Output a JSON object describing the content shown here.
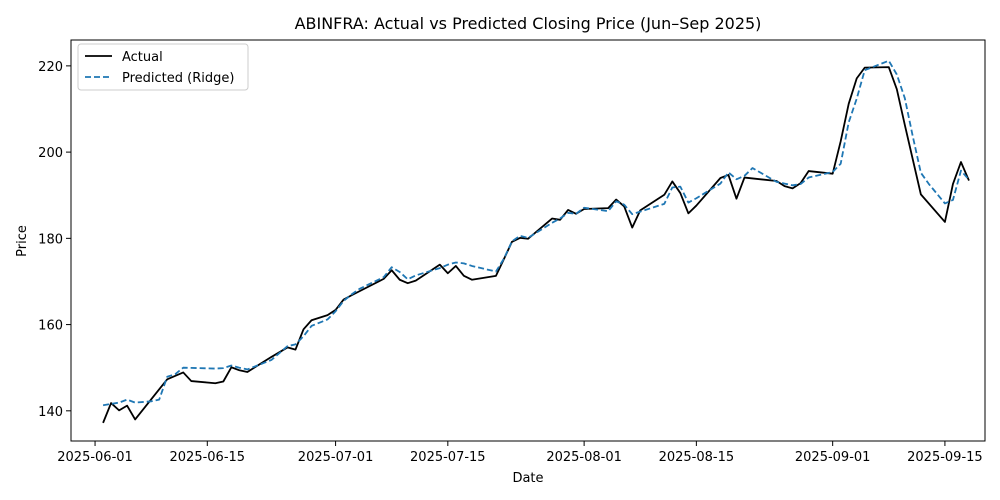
{
  "chart_data": {
    "type": "line",
    "title": "ABINFRA: Actual vs Predicted Closing Price (Jun–Sep 2025)",
    "xlabel": "Date",
    "ylabel": "Price",
    "x_tick_labels": [
      {
        "date": "2025-06-01",
        "label": "2025-06-01"
      },
      {
        "date": "2025-06-15",
        "label": "2025-06-15"
      },
      {
        "date": "2025-07-01",
        "label": "2025-07-01"
      },
      {
        "date": "2025-07-15",
        "label": "2025-07-15"
      },
      {
        "date": "2025-08-01",
        "label": "2025-08-01"
      },
      {
        "date": "2025-08-15",
        "label": "2025-08-15"
      },
      {
        "date": "2025-09-01",
        "label": "2025-09-01"
      },
      {
        "date": "2025-09-15",
        "label": "2025-09-15"
      }
    ],
    "y_ticks": [
      140,
      160,
      180,
      200,
      220
    ],
    "xlim": [
      "2025-05-29",
      "2025-09-20"
    ],
    "ylim": [
      133,
      226
    ],
    "grid": false,
    "legend_position": "upper-left",
    "series": [
      {
        "name": "Actual",
        "color": "#000000",
        "style": "solid",
        "points": [
          [
            "2025-06-02",
            137.2
          ],
          [
            "2025-06-03",
            141.8
          ],
          [
            "2025-06-04",
            140.1
          ],
          [
            "2025-06-05",
            141.2
          ],
          [
            "2025-06-06",
            138.0
          ],
          [
            "2025-06-09",
            145.0
          ],
          [
            "2025-06-10",
            147.3
          ],
          [
            "2025-06-12",
            148.9
          ],
          [
            "2025-06-13",
            146.9
          ],
          [
            "2025-06-16",
            146.4
          ],
          [
            "2025-06-17",
            146.8
          ],
          [
            "2025-06-18",
            150.1
          ],
          [
            "2025-06-19",
            149.4
          ],
          [
            "2025-06-20",
            149.0
          ],
          [
            "2025-06-23",
            152.5
          ],
          [
            "2025-06-24",
            153.6
          ],
          [
            "2025-06-25",
            154.7
          ],
          [
            "2025-06-26",
            154.2
          ],
          [
            "2025-06-27",
            158.9
          ],
          [
            "2025-06-28",
            161.0
          ],
          [
            "2025-06-30",
            162.2
          ],
          [
            "2025-07-01",
            163.4
          ],
          [
            "2025-07-02",
            165.8
          ],
          [
            "2025-07-03",
            166.8
          ],
          [
            "2025-07-07",
            170.6
          ],
          [
            "2025-07-08",
            172.6
          ],
          [
            "2025-07-09",
            170.4
          ],
          [
            "2025-07-10",
            169.6
          ],
          [
            "2025-07-11",
            170.2
          ],
          [
            "2025-07-14",
            173.9
          ],
          [
            "2025-07-15",
            171.9
          ],
          [
            "2025-07-16",
            173.6
          ],
          [
            "2025-07-17",
            171.3
          ],
          [
            "2025-07-18",
            170.4
          ],
          [
            "2025-07-21",
            171.3
          ],
          [
            "2025-07-22",
            175.2
          ],
          [
            "2025-07-23",
            179.2
          ],
          [
            "2025-07-24",
            180.1
          ],
          [
            "2025-07-25",
            179.9
          ],
          [
            "2025-07-28",
            184.6
          ],
          [
            "2025-07-29",
            184.3
          ],
          [
            "2025-07-30",
            186.6
          ],
          [
            "2025-07-31",
            185.7
          ],
          [
            "2025-08-01",
            186.8
          ],
          [
            "2025-08-04",
            187.0
          ],
          [
            "2025-08-05",
            189.0
          ],
          [
            "2025-08-06",
            187.4
          ],
          [
            "2025-08-07",
            182.5
          ],
          [
            "2025-08-08",
            186.5
          ],
          [
            "2025-08-11",
            190.1
          ],
          [
            "2025-08-12",
            193.2
          ],
          [
            "2025-08-13",
            190.5
          ],
          [
            "2025-08-14",
            185.8
          ],
          [
            "2025-08-15",
            187.6
          ],
          [
            "2025-08-18",
            194.0
          ],
          [
            "2025-08-19",
            194.7
          ],
          [
            "2025-08-20",
            189.2
          ],
          [
            "2025-08-21",
            194.1
          ],
          [
            "2025-08-25",
            193.3
          ],
          [
            "2025-08-26",
            192.1
          ],
          [
            "2025-08-27",
            191.6
          ],
          [
            "2025-08-28",
            192.8
          ],
          [
            "2025-08-29",
            195.6
          ],
          [
            "2025-09-01",
            195.0
          ],
          [
            "2025-09-02",
            202.5
          ],
          [
            "2025-09-03",
            211.2
          ],
          [
            "2025-09-04",
            217.1
          ],
          [
            "2025-09-05",
            219.6
          ],
          [
            "2025-09-08",
            219.7
          ],
          [
            "2025-09-09",
            214.6
          ],
          [
            "2025-09-10",
            206.3
          ],
          [
            "2025-09-12",
            190.2
          ],
          [
            "2025-09-15",
            183.8
          ],
          [
            "2025-09-16",
            192.6
          ],
          [
            "2025-09-17",
            197.7
          ],
          [
            "2025-09-18",
            193.4
          ]
        ]
      },
      {
        "name": "Predicted (Ridge)",
        "color": "#1f77b4",
        "style": "dashed",
        "points": [
          [
            "2025-06-02",
            141.3
          ],
          [
            "2025-06-03",
            141.6
          ],
          [
            "2025-06-04",
            141.9
          ],
          [
            "2025-06-05",
            142.6
          ],
          [
            "2025-06-06",
            141.9
          ],
          [
            "2025-06-08",
            142.2
          ],
          [
            "2025-06-09",
            142.6
          ],
          [
            "2025-06-10",
            147.9
          ],
          [
            "2025-06-11",
            148.5
          ],
          [
            "2025-06-12",
            150.0
          ],
          [
            "2025-06-16",
            149.8
          ],
          [
            "2025-06-17",
            149.9
          ],
          [
            "2025-06-18",
            150.5
          ],
          [
            "2025-06-19",
            150.0
          ],
          [
            "2025-06-20",
            149.6
          ],
          [
            "2025-06-23",
            151.8
          ],
          [
            "2025-06-25",
            155.0
          ],
          [
            "2025-06-26",
            155.4
          ],
          [
            "2025-06-27",
            157.3
          ],
          [
            "2025-06-28",
            159.7
          ],
          [
            "2025-06-30",
            161.2
          ],
          [
            "2025-07-01",
            163.1
          ],
          [
            "2025-07-02",
            165.5
          ],
          [
            "2025-07-03",
            167.0
          ],
          [
            "2025-07-04",
            168.3
          ],
          [
            "2025-07-07",
            171.0
          ],
          [
            "2025-07-08",
            173.3
          ],
          [
            "2025-07-09",
            172.2
          ],
          [
            "2025-07-10",
            170.5
          ],
          [
            "2025-07-11",
            171.4
          ],
          [
            "2025-07-14",
            173.1
          ],
          [
            "2025-07-15",
            173.9
          ],
          [
            "2025-07-16",
            174.4
          ],
          [
            "2025-07-17",
            174.2
          ],
          [
            "2025-07-18",
            173.6
          ],
          [
            "2025-07-21",
            172.3
          ],
          [
            "2025-07-22",
            175.3
          ],
          [
            "2025-07-23",
            179.3
          ],
          [
            "2025-07-24",
            180.6
          ],
          [
            "2025-07-25",
            180.1
          ],
          [
            "2025-07-28",
            183.6
          ],
          [
            "2025-07-29",
            184.6
          ],
          [
            "2025-07-30",
            185.9
          ],
          [
            "2025-07-31",
            185.7
          ],
          [
            "2025-08-01",
            187.1
          ],
          [
            "2025-08-04",
            186.3
          ],
          [
            "2025-08-05",
            188.6
          ],
          [
            "2025-08-06",
            187.8
          ],
          [
            "2025-08-07",
            185.6
          ],
          [
            "2025-08-08",
            186.2
          ],
          [
            "2025-08-11",
            188.0
          ],
          [
            "2025-08-12",
            191.8
          ],
          [
            "2025-08-13",
            192.0
          ],
          [
            "2025-08-14",
            188.3
          ],
          [
            "2025-08-15",
            189.3
          ],
          [
            "2025-08-18",
            192.7
          ],
          [
            "2025-08-19",
            195.3
          ],
          [
            "2025-08-20",
            193.7
          ],
          [
            "2025-08-21",
            194.5
          ],
          [
            "2025-08-22",
            196.3
          ],
          [
            "2025-08-25",
            193.1
          ],
          [
            "2025-08-26",
            192.7
          ],
          [
            "2025-08-27",
            192.3
          ],
          [
            "2025-08-28",
            192.6
          ],
          [
            "2025-08-29",
            194.1
          ],
          [
            "2025-09-01",
            195.4
          ],
          [
            "2025-09-02",
            197.3
          ],
          [
            "2025-09-03",
            206.9
          ],
          [
            "2025-09-04",
            212.4
          ],
          [
            "2025-09-05",
            219.0
          ],
          [
            "2025-09-08",
            221.2
          ],
          [
            "2025-09-09",
            218.0
          ],
          [
            "2025-09-10",
            212.5
          ],
          [
            "2025-09-11",
            203.6
          ],
          [
            "2025-09-12",
            195.2
          ],
          [
            "2025-09-13",
            192.6
          ],
          [
            "2025-09-15",
            188.1
          ],
          [
            "2025-09-16",
            188.9
          ],
          [
            "2025-09-17",
            195.7
          ],
          [
            "2025-09-18",
            193.6
          ]
        ]
      }
    ]
  }
}
